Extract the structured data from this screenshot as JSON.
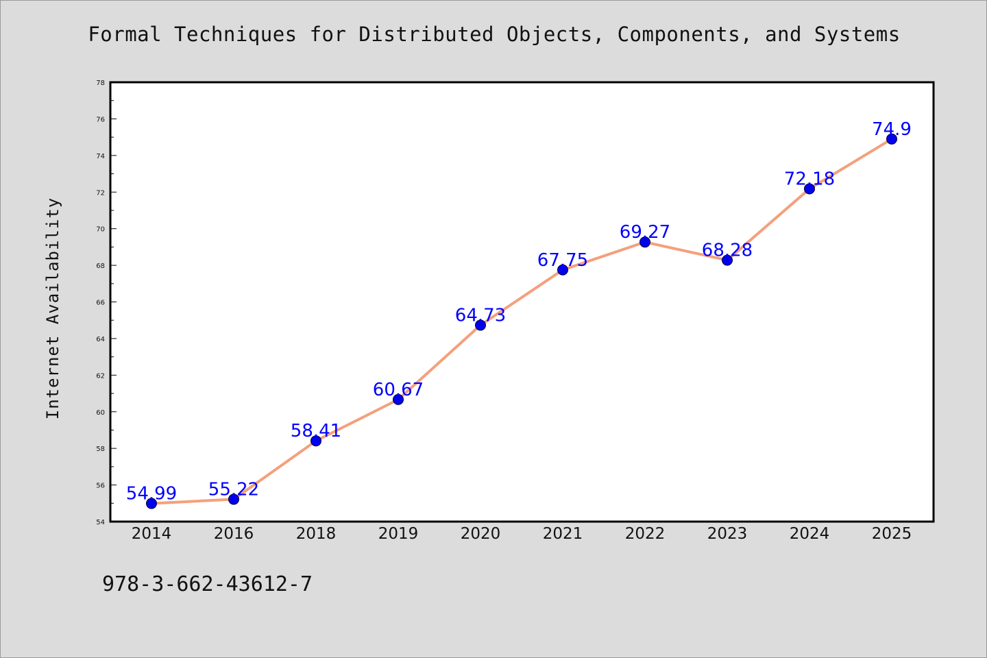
{
  "chart_data": {
    "type": "line",
    "title": "Formal Techniques for Distributed Objects, Components, and Systems",
    "ylabel": "Internet Availability",
    "xlabel": "",
    "categories": [
      "2014",
      "2016",
      "2018",
      "2019",
      "2020",
      "2021",
      "2022",
      "2023",
      "2024",
      "2025"
    ],
    "values": [
      54.99,
      55.22,
      58.41,
      60.67,
      64.73,
      67.75,
      69.27,
      68.28,
      72.18,
      74.9
    ],
    "value_labels": [
      "54.99",
      "55.22",
      "58.41",
      "60.67",
      "64.73",
      "67.75",
      "69.27",
      "68.28",
      "72.18",
      "74.9"
    ],
    "ylim": [
      54,
      78
    ],
    "yticks": [
      "54",
      "56",
      "58",
      "60",
      "62",
      "64",
      "66",
      "68",
      "70",
      "72",
      "74",
      "76",
      "78"
    ],
    "grid": false,
    "line_color": "#f4a07c",
    "marker_color": "#0000ee",
    "label_color": "#0000ff"
  },
  "footer": {
    "isbn": "978-3-662-43612-7"
  }
}
